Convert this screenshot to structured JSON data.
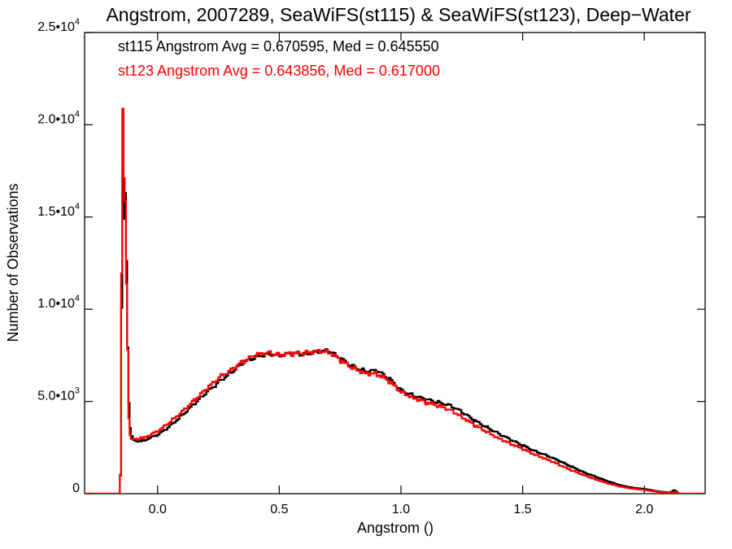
{
  "chart_data": {
    "type": "line",
    "title": "Angstrom, 2007289, SeaWiFS(st115) & SeaWiFS(st123), Deep−Water",
    "xlabel": "Angstrom ()",
    "ylabel": "Number of Observations",
    "xlim": [
      -0.3,
      2.25
    ],
    "ylim": [
      0,
      25000
    ],
    "x_ticks": [
      {
        "value": 0.0,
        "label": "0.0"
      },
      {
        "value": 0.5,
        "label": "0.5"
      },
      {
        "value": 1.0,
        "label": "1.0"
      },
      {
        "value": 1.5,
        "label": "1.5"
      },
      {
        "value": 2.0,
        "label": "2.0"
      }
    ],
    "y_ticks": [
      {
        "value": 0,
        "mantissa": "0",
        "exponent": ""
      },
      {
        "value": 5000,
        "mantissa": "5.0•10",
        "exponent": "3"
      },
      {
        "value": 10000,
        "mantissa": "1.0•10",
        "exponent": "4"
      },
      {
        "value": 15000,
        "mantissa": "1.5•10",
        "exponent": "4"
      },
      {
        "value": 20000,
        "mantissa": "2.0•10",
        "exponent": "4"
      },
      {
        "value": 25000,
        "mantissa": "2.5•10",
        "exponent": "4"
      }
    ],
    "grid": false,
    "series": [
      {
        "name": "st115",
        "color": "#000000",
        "annotation": "st115 Angstrom Avg = 0.670595, Med = 0.645550",
        "points": [
          [
            -0.3,
            0
          ],
          [
            -0.16,
            0
          ],
          [
            -0.155,
            1000
          ],
          [
            -0.15,
            10000
          ],
          [
            -0.145,
            17500
          ],
          [
            -0.14,
            15000
          ],
          [
            -0.135,
            16300
          ],
          [
            -0.13,
            12500
          ],
          [
            -0.125,
            8000
          ],
          [
            -0.12,
            5000
          ],
          [
            -0.115,
            3500
          ],
          [
            -0.11,
            3100
          ],
          [
            -0.1,
            2900
          ],
          [
            -0.08,
            2850
          ],
          [
            -0.05,
            2950
          ],
          [
            0.0,
            3200
          ],
          [
            0.05,
            3700
          ],
          [
            0.1,
            4300
          ],
          [
            0.15,
            4900
          ],
          [
            0.2,
            5500
          ],
          [
            0.25,
            6100
          ],
          [
            0.3,
            6600
          ],
          [
            0.35,
            7100
          ],
          [
            0.4,
            7400
          ],
          [
            0.45,
            7600
          ],
          [
            0.5,
            7500
          ],
          [
            0.55,
            7600
          ],
          [
            0.6,
            7550
          ],
          [
            0.65,
            7700
          ],
          [
            0.7,
            7750
          ],
          [
            0.75,
            7300
          ],
          [
            0.8,
            6900
          ],
          [
            0.85,
            6650
          ],
          [
            0.9,
            6650
          ],
          [
            0.95,
            6200
          ],
          [
            1.0,
            5600
          ],
          [
            1.05,
            5300
          ],
          [
            1.1,
            5100
          ],
          [
            1.15,
            4950
          ],
          [
            1.2,
            4800
          ],
          [
            1.25,
            4400
          ],
          [
            1.3,
            3950
          ],
          [
            1.35,
            3600
          ],
          [
            1.4,
            3250
          ],
          [
            1.45,
            2900
          ],
          [
            1.5,
            2600
          ],
          [
            1.55,
            2300
          ],
          [
            1.6,
            2050
          ],
          [
            1.65,
            1750
          ],
          [
            1.7,
            1450
          ],
          [
            1.75,
            1150
          ],
          [
            1.8,
            900
          ],
          [
            1.85,
            650
          ],
          [
            1.9,
            450
          ],
          [
            1.95,
            320
          ],
          [
            2.0,
            250
          ],
          [
            2.05,
            130
          ],
          [
            2.1,
            60
          ],
          [
            2.12,
            180
          ],
          [
            2.14,
            0
          ],
          [
            2.25,
            0
          ]
        ]
      },
      {
        "name": "st123",
        "color": "#ff0000",
        "annotation": "st123 Angstrom Avg = 0.643856, Med = 0.617000",
        "points": [
          [
            -0.3,
            0
          ],
          [
            -0.16,
            0
          ],
          [
            -0.155,
            1000
          ],
          [
            -0.15,
            12000
          ],
          [
            -0.145,
            21000
          ],
          [
            -0.14,
            17000
          ],
          [
            -0.135,
            15800
          ],
          [
            -0.13,
            11500
          ],
          [
            -0.125,
            7800
          ],
          [
            -0.12,
            4000
          ],
          [
            -0.115,
            3200
          ],
          [
            -0.11,
            3000
          ],
          [
            -0.1,
            2950
          ],
          [
            -0.08,
            2950
          ],
          [
            -0.05,
            3100
          ],
          [
            0.0,
            3400
          ],
          [
            0.05,
            3900
          ],
          [
            0.1,
            4500
          ],
          [
            0.15,
            5100
          ],
          [
            0.2,
            5700
          ],
          [
            0.25,
            6300
          ],
          [
            0.3,
            6750
          ],
          [
            0.35,
            7200
          ],
          [
            0.4,
            7500
          ],
          [
            0.45,
            7650
          ],
          [
            0.5,
            7550
          ],
          [
            0.55,
            7600
          ],
          [
            0.6,
            7600
          ],
          [
            0.65,
            7750
          ],
          [
            0.7,
            7700
          ],
          [
            0.75,
            7200
          ],
          [
            0.8,
            6800
          ],
          [
            0.85,
            6550
          ],
          [
            0.9,
            6500
          ],
          [
            0.95,
            6050
          ],
          [
            1.0,
            5500
          ],
          [
            1.05,
            5200
          ],
          [
            1.1,
            4950
          ],
          [
            1.15,
            4750
          ],
          [
            1.2,
            4550
          ],
          [
            1.25,
            4150
          ],
          [
            1.3,
            3700
          ],
          [
            1.35,
            3350
          ],
          [
            1.4,
            3000
          ],
          [
            1.45,
            2700
          ],
          [
            1.5,
            2400
          ],
          [
            1.55,
            2100
          ],
          [
            1.6,
            1850
          ],
          [
            1.65,
            1550
          ],
          [
            1.7,
            1250
          ],
          [
            1.75,
            1000
          ],
          [
            1.8,
            760
          ],
          [
            1.85,
            550
          ],
          [
            1.9,
            380
          ],
          [
            1.95,
            270
          ],
          [
            2.0,
            200
          ],
          [
            2.05,
            100
          ],
          [
            2.1,
            40
          ],
          [
            2.12,
            90
          ],
          [
            2.14,
            0
          ],
          [
            2.25,
            0
          ]
        ]
      }
    ]
  }
}
